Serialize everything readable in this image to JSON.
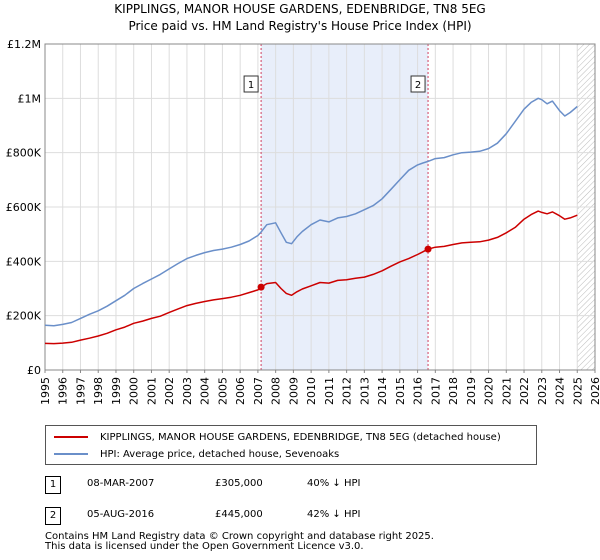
{
  "chart_data": {
    "type": "line",
    "title": "KIPPLINGS, MANOR HOUSE GARDENS, EDENBRIDGE, TN8 5EG",
    "subtitle": "Price paid vs. HM Land Registry's House Price Index (HPI)",
    "xlabel": "",
    "ylabel": "",
    "xlim": [
      1995,
      2026
    ],
    "ylim": [
      0,
      1200000
    ],
    "x_ticks": [
      "1995",
      "1996",
      "1997",
      "1998",
      "1999",
      "2000",
      "2001",
      "2002",
      "2003",
      "2004",
      "2005",
      "2006",
      "2007",
      "2008",
      "2009",
      "2010",
      "2011",
      "2012",
      "2013",
      "2014",
      "2015",
      "2016",
      "2017",
      "2018",
      "2019",
      "2020",
      "2021",
      "2022",
      "2023",
      "2024",
      "2025",
      "2026"
    ],
    "y_ticks": [
      {
        "value": 0,
        "label": "£0"
      },
      {
        "value": 200000,
        "label": "£200K"
      },
      {
        "value": 400000,
        "label": "£400K"
      },
      {
        "value": 600000,
        "label": "£600K"
      },
      {
        "value": 800000,
        "label": "£800K"
      },
      {
        "value": 1000000,
        "label": "£1M"
      },
      {
        "value": 1200000,
        "label": "£1.2M"
      }
    ],
    "grid": true,
    "shaded_span": [
      2007.18,
      2016.59
    ],
    "forecast_start": 2025.0,
    "series": [
      {
        "name": "KIPPLINGS, MANOR HOUSE GARDENS, EDENBRIDGE, TN8 5EG (detached house)",
        "color": "#cc0000",
        "x": [
          1995.0,
          1995.5,
          1996.0,
          1996.5,
          1997.0,
          1997.5,
          1998.0,
          1998.5,
          1999.0,
          1999.5,
          2000.0,
          2000.5,
          2001.0,
          2001.5,
          2002.0,
          2002.5,
          2003.0,
          2003.5,
          2004.0,
          2004.5,
          2005.0,
          2005.5,
          2006.0,
          2006.5,
          2007.0,
          2007.18,
          2007.5,
          2008.0,
          2008.3,
          2008.6,
          2008.9,
          2009.2,
          2009.5,
          2010.0,
          2010.5,
          2011.0,
          2011.5,
          2012.0,
          2012.5,
          2013.0,
          2013.5,
          2014.0,
          2014.5,
          2015.0,
          2015.5,
          2016.0,
          2016.3,
          2016.59,
          2017.0,
          2017.5,
          2018.0,
          2018.5,
          2019.0,
          2019.5,
          2020.0,
          2020.5,
          2021.0,
          2021.5,
          2022.0,
          2022.4,
          2022.8,
          2023.0,
          2023.3,
          2023.6,
          2024.0,
          2024.3,
          2024.6,
          2025.0
        ],
        "y": [
          98000,
          97000,
          99000,
          102000,
          110000,
          117000,
          125000,
          135000,
          148000,
          158000,
          172000,
          180000,
          190000,
          198000,
          212000,
          225000,
          237000,
          245000,
          252000,
          258000,
          263000,
          268000,
          275000,
          285000,
          295000,
          305000,
          318000,
          322000,
          300000,
          282000,
          275000,
          288000,
          298000,
          310000,
          322000,
          320000,
          330000,
          332000,
          338000,
          342000,
          352000,
          365000,
          382000,
          398000,
          410000,
          425000,
          435000,
          445000,
          452000,
          455000,
          462000,
          468000,
          470000,
          472000,
          478000,
          488000,
          505000,
          525000,
          555000,
          572000,
          585000,
          580000,
          575000,
          582000,
          568000,
          555000,
          560000,
          570000
        ]
      },
      {
        "name": "HPI: Average price, detached house, Sevenoaks",
        "color": "#6a8fc9",
        "x": [
          1995.0,
          1995.5,
          1996.0,
          1996.5,
          1997.0,
          1997.5,
          1998.0,
          1998.5,
          1999.0,
          1999.5,
          2000.0,
          2000.5,
          2001.0,
          2001.5,
          2002.0,
          2002.5,
          2003.0,
          2003.5,
          2004.0,
          2004.5,
          2005.0,
          2005.5,
          2006.0,
          2006.5,
          2007.0,
          2007.18,
          2007.5,
          2008.0,
          2008.3,
          2008.6,
          2008.9,
          2009.2,
          2009.5,
          2010.0,
          2010.5,
          2011.0,
          2011.5,
          2012.0,
          2012.5,
          2013.0,
          2013.5,
          2014.0,
          2014.5,
          2015.0,
          2015.5,
          2016.0,
          2016.3,
          2016.59,
          2017.0,
          2017.5,
          2018.0,
          2018.5,
          2019.0,
          2019.5,
          2020.0,
          2020.5,
          2021.0,
          2021.5,
          2022.0,
          2022.4,
          2022.8,
          2023.0,
          2023.3,
          2023.6,
          2024.0,
          2024.3,
          2024.6,
          2025.0
        ],
        "y": [
          165000,
          163000,
          168000,
          175000,
          190000,
          205000,
          218000,
          235000,
          255000,
          275000,
          300000,
          318000,
          335000,
          352000,
          372000,
          392000,
          410000,
          422000,
          432000,
          440000,
          445000,
          452000,
          462000,
          475000,
          495000,
          508000,
          535000,
          542000,
          505000,
          470000,
          465000,
          490000,
          510000,
          535000,
          552000,
          545000,
          560000,
          565000,
          575000,
          590000,
          605000,
          630000,
          665000,
          700000,
          735000,
          755000,
          762000,
          768000,
          778000,
          782000,
          792000,
          800000,
          802000,
          805000,
          815000,
          835000,
          870000,
          915000,
          960000,
          985000,
          1000000,
          995000,
          980000,
          990000,
          955000,
          935000,
          948000,
          970000
        ]
      }
    ],
    "sales": [
      {
        "label": "1",
        "x": 2007.18,
        "y": 305000
      },
      {
        "label": "2",
        "x": 2016.59,
        "y": 445000
      }
    ]
  },
  "legend": {
    "items": [
      {
        "label": "KIPPLINGS, MANOR HOUSE GARDENS, EDENBRIDGE, TN8 5EG (detached house)",
        "color": "#cc0000"
      },
      {
        "label": "HPI: Average price, detached house, Sevenoaks",
        "color": "#6a8fc9"
      }
    ]
  },
  "transactions": [
    {
      "num": "1",
      "date": "08-MAR-2007",
      "price": "£305,000",
      "hpi": "40% ↓ HPI"
    },
    {
      "num": "2",
      "date": "05-AUG-2016",
      "price": "£445,000",
      "hpi": "42% ↓ HPI"
    }
  ],
  "footer": {
    "line1": "Contains HM Land Registry data © Crown copyright and database right 2025.",
    "line2": "This data is licensed under the Open Government Licence v3.0."
  }
}
